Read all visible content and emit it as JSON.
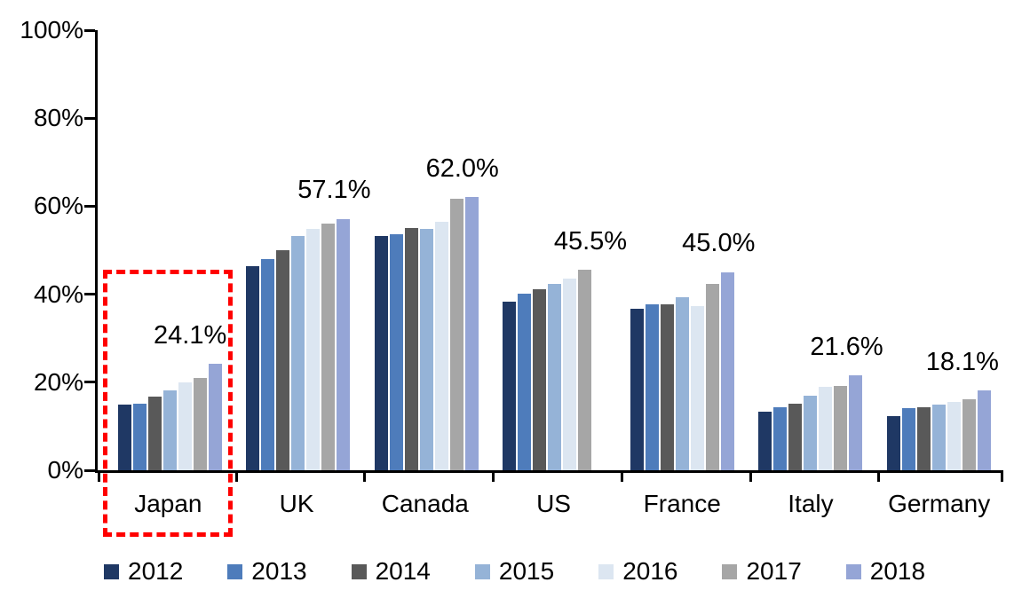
{
  "chart_data": {
    "type": "bar",
    "categories": [
      "Japan",
      "UK",
      "Canada",
      "US",
      "France",
      "Italy",
      "Germany"
    ],
    "series": [
      {
        "name": "2012",
        "color": "#1F3864",
        "values": [
          14.9,
          46.3,
          53.2,
          38.3,
          36.6,
          13.3,
          12.4
        ]
      },
      {
        "name": "2013",
        "color": "#4E7CBB",
        "values": [
          15.1,
          47.9,
          53.6,
          40.1,
          37.7,
          14.3,
          14.1
        ]
      },
      {
        "name": "2014",
        "color": "#595959",
        "values": [
          16.7,
          50.0,
          55.0,
          41.2,
          37.7,
          15.2,
          14.4
        ]
      },
      {
        "name": "2015",
        "color": "#95B3D7",
        "values": [
          18.1,
          53.3,
          54.8,
          42.3,
          39.3,
          16.9,
          14.9
        ]
      },
      {
        "name": "2016",
        "color": "#DCE6F1",
        "values": [
          19.9,
          54.9,
          56.4,
          43.6,
          37.3,
          19.0,
          15.6
        ]
      },
      {
        "name": "2017",
        "color": "#A6A6A6",
        "values": [
          21.0,
          56.0,
          61.7,
          45.5,
          42.4,
          19.2,
          16.1
        ]
      },
      {
        "name": "2018",
        "color": "#95A5D6",
        "values": [
          24.1,
          57.1,
          62.0,
          null,
          45.0,
          21.6,
          18.1
        ]
      }
    ],
    "annotations": [
      "24.1%",
      "57.1%",
      "62.0%",
      "45.5%",
      "45.0%",
      "21.6%",
      "18.1%"
    ],
    "yticks": [
      "0%",
      "20%",
      "40%",
      "60%",
      "80%",
      "100%"
    ],
    "ylim": [
      0,
      100
    ],
    "grid": "off",
    "legend_position": "bottom",
    "highlight": {
      "type": "dashed-box",
      "color": "#FF0000",
      "category": "Japan"
    }
  }
}
